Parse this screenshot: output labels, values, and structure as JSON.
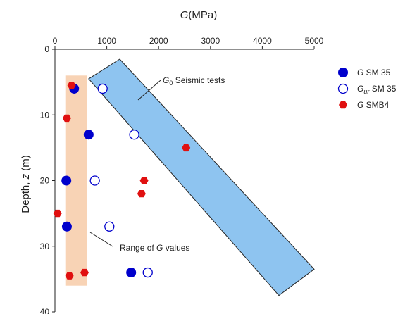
{
  "chart_data": {
    "type": "scatter",
    "x_axis": {
      "label_var": "G",
      "label_unit": "(MPa)",
      "range": [
        0,
        5000
      ],
      "ticks": [
        0,
        1000,
        2000,
        3000,
        4000,
        5000
      ],
      "position": "top"
    },
    "y_axis": {
      "label_main": "Depth, ",
      "label_var": "z",
      "label_unit": " (m)",
      "range": [
        0,
        40
      ],
      "ticks": [
        0,
        10,
        20,
        30,
        40
      ],
      "inverted": true
    },
    "series": [
      {
        "name_var": "G",
        "name_sub": "",
        "name_rest": "  SM 35",
        "marker": "filled-circle",
        "color": "#0000cc",
        "points": [
          [
            370,
            6
          ],
          [
            650,
            13
          ],
          [
            220,
            20
          ],
          [
            230,
            27
          ],
          [
            1470,
            34
          ]
        ]
      },
      {
        "name_var": "G",
        "name_sub": "ur",
        "name_rest": " SM 35",
        "marker": "open-circle",
        "color": "#0000cc",
        "points": [
          [
            920,
            6
          ],
          [
            1530,
            13
          ],
          [
            770,
            20
          ],
          [
            1050,
            27
          ],
          [
            1790,
            34
          ]
        ]
      },
      {
        "name_var": "G",
        "name_sub": "",
        "name_rest": "  SMB4",
        "marker": "filled-hexagon",
        "color": "#e01010",
        "points": [
          [
            320,
            5.5
          ],
          [
            230,
            10.5
          ],
          [
            2530,
            15
          ],
          [
            1720,
            20
          ],
          [
            1670,
            22
          ],
          [
            50,
            25
          ],
          [
            570,
            34
          ],
          [
            280,
            34.5
          ]
        ]
      }
    ],
    "regions": [
      {
        "label": "Range of G values",
        "shape": "rectangle",
        "color": "#f8d3b5",
        "x_range": [
          200,
          620
        ],
        "depth_range": [
          4,
          36
        ]
      },
      {
        "label_var": "G",
        "label_sub": "0",
        "label_rest": " Seismic tests",
        "shape": "parallelogram",
        "color": "#8ec4f0",
        "edge_color": "#222222",
        "corners": [
          [
            650,
            4.5
          ],
          [
            1250,
            1.5
          ],
          [
            5000,
            33.5
          ],
          [
            4320,
            37.5
          ]
        ]
      }
    ],
    "annotations": [
      {
        "text_pre": "Range of ",
        "text_var": "G",
        "text_post": " values",
        "points_to": "orange region"
      },
      {
        "points_to": "blue region"
      }
    ],
    "legend_position": "right"
  }
}
